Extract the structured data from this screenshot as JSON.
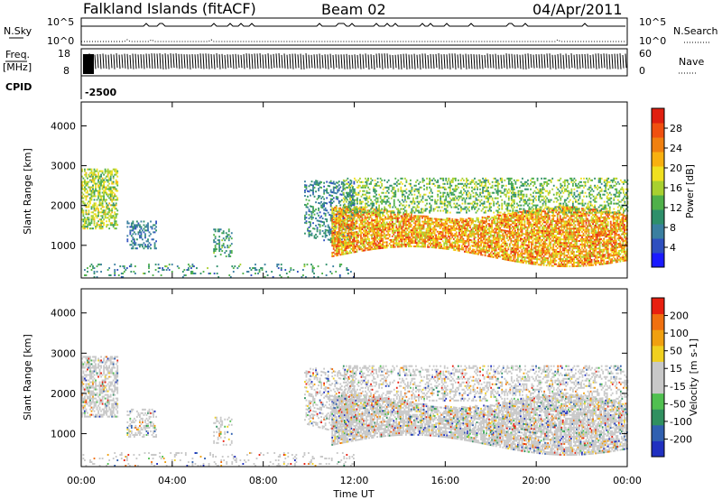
{
  "header": {
    "station": "Falkland Islands (fitACF)",
    "beam": "Beam 02",
    "date": "04/Apr/2011"
  },
  "strips": {
    "nsky_label": "N.Sky",
    "nsearch_label": "N.Search",
    "nsky_ticks": [
      "10^5",
      "10^0"
    ],
    "nsearch_ticks": [
      "10^5",
      "10^0"
    ],
    "freq_label_1": "Freq.",
    "freq_label_2": "[MHz]",
    "freq_ticks": [
      "18",
      "8"
    ],
    "nave_label": "Nave",
    "nave_ticks": [
      "60",
      "0"
    ],
    "cpid_label": "CPID",
    "cpid_value": "-2500"
  },
  "chart_data": [
    {
      "type": "heatmap",
      "name": "power",
      "ylabel": "Slant Range [km]",
      "ylim": [
        180,
        4600
      ],
      "yticks": [
        "1000",
        "2000",
        "3000",
        "4000"
      ],
      "colorbar_label": "Power [dB]",
      "colorbar_ticks": [
        "28",
        "24",
        "20",
        "16",
        "12",
        "8",
        "4"
      ],
      "colorbar_colors": [
        "#1a1aff",
        "#2e4fbf",
        "#3a7fa0",
        "#2e8f6a",
        "#4fb04a",
        "#a8d030",
        "#f0e020",
        "#f8b010",
        "#f08010",
        "#f05010",
        "#e02010"
      ]
    },
    {
      "type": "heatmap",
      "name": "velocity",
      "ylabel": "Slant Range [km]",
      "ylim": [
        180,
        4600
      ],
      "yticks": [
        "1000",
        "2000",
        "3000",
        "4000"
      ],
      "colorbar_label": "Velocity [m s-1]",
      "colorbar_ticks": [
        "200",
        "100",
        "50",
        "15",
        "-15",
        "-50",
        "-100",
        "-200"
      ],
      "colorbar_colors": [
        "#2030c0",
        "#3060b0",
        "#309060",
        "#50c050",
        "#c8c8c8",
        "#c8c8c8",
        "#f0d020",
        "#f0a010",
        "#f07010",
        "#e82010"
      ]
    }
  ],
  "xaxis": {
    "label": "Time UT",
    "ticks": [
      "00:00",
      "04:00",
      "08:00",
      "12:00",
      "16:00",
      "20:00",
      "00:00"
    ]
  }
}
